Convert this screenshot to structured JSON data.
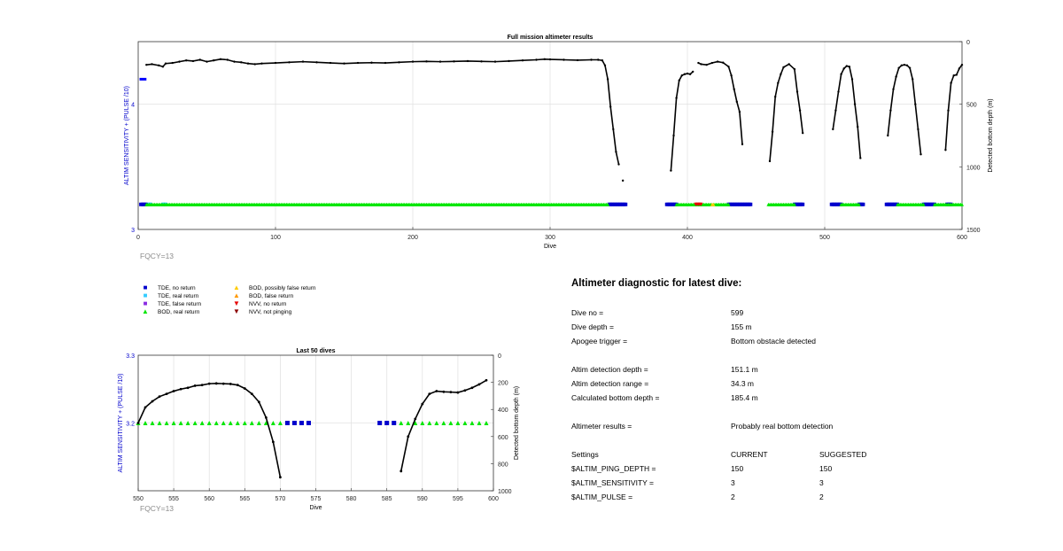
{
  "chart_data": [
    {
      "type": "scatter",
      "title": "Full mission altimeter results",
      "xlabel": "Dive",
      "ylabel_left": "ALTIM SENSITIVITY + (PULSE /10)",
      "ylabel_right": "Detected bottom depth (m)",
      "xlim": [
        0,
        600
      ],
      "xticks": [
        0,
        100,
        200,
        300,
        400,
        500,
        600
      ],
      "ylim_left": [
        3,
        4.5
      ],
      "yticks_left": [
        3,
        4
      ],
      "ylim_right": [
        1500,
        0
      ],
      "yticks_right": [
        0,
        500,
        1000,
        1500
      ],
      "grid": true,
      "annotation": "FQCY=13",
      "settings_segments": [
        {
          "x_start": 1,
          "x_end": 6,
          "y": 4.2,
          "color": "#0000ff"
        }
      ],
      "depth_series": {
        "name": "Detected bottom depth",
        "segments": [
          [
            [
              6,
              185
            ],
            [
              10,
              180
            ],
            [
              15,
              190
            ],
            [
              18,
              200
            ],
            [
              20,
              175
            ],
            [
              25,
              170
            ],
            [
              30,
              160
            ],
            [
              35,
              150
            ],
            [
              40,
              155
            ],
            [
              45,
              145
            ],
            [
              50,
              160
            ],
            [
              55,
              150
            ],
            [
              60,
              140
            ],
            [
              65,
              145
            ],
            [
              70,
              160
            ],
            [
              75,
              165
            ],
            [
              80,
              175
            ],
            [
              85,
              180
            ],
            [
              90,
              175
            ],
            [
              100,
              170
            ],
            [
              110,
              165
            ],
            [
              120,
              160
            ],
            [
              130,
              165
            ],
            [
              140,
              170
            ],
            [
              150,
              175
            ],
            [
              160,
              170
            ],
            [
              170,
              168
            ],
            [
              180,
              170
            ],
            [
              190,
              165
            ],
            [
              200,
              160
            ],
            [
              210,
              158
            ],
            [
              220,
              160
            ],
            [
              230,
              158
            ],
            [
              240,
              155
            ],
            [
              250,
              158
            ],
            [
              260,
              160
            ],
            [
              270,
              155
            ],
            [
              280,
              150
            ],
            [
              290,
              145
            ],
            [
              296,
              140
            ],
            [
              300,
              142
            ],
            [
              310,
              145
            ],
            [
              320,
              148
            ],
            [
              330,
              145
            ],
            [
              335,
              145
            ],
            [
              338,
              150
            ],
            [
              340,
              190
            ],
            [
              342,
              300
            ],
            [
              344,
              520
            ],
            [
              346,
              700
            ],
            [
              348,
              880
            ],
            [
              350,
              980
            ]
          ],
          [
            [
              353,
              1110
            ]
          ],
          [
            [
              388,
              1030
            ],
            [
              390,
              750
            ],
            [
              392,
              450
            ],
            [
              394,
              310
            ],
            [
              396,
              270
            ],
            [
              398,
              260
            ],
            [
              400,
              255
            ],
            [
              402,
              260
            ],
            [
              404,
              240
            ]
          ],
          [
            [
              408,
              170
            ],
            [
              410,
              180
            ],
            [
              414,
              185
            ],
            [
              418,
              170
            ],
            [
              422,
              160
            ],
            [
              426,
              168
            ],
            [
              430,
              200
            ],
            [
              432,
              270
            ],
            [
              434,
              380
            ],
            [
              436,
              480
            ],
            [
              438,
              560
            ],
            [
              440,
              820
            ]
          ],
          [
            [
              460,
              955
            ],
            [
              462,
              720
            ],
            [
              464,
              440
            ],
            [
              466,
              330
            ],
            [
              468,
              260
            ],
            [
              470,
              205
            ],
            [
              474,
              180
            ],
            [
              478,
              220
            ],
            [
              480,
              400
            ],
            [
              482,
              550
            ],
            [
              484,
              730
            ]
          ],
          [
            [
              506,
              700
            ],
            [
              508,
              550
            ],
            [
              510,
              400
            ],
            [
              512,
              260
            ],
            [
              514,
              215
            ],
            [
              516,
              195
            ],
            [
              518,
              200
            ],
            [
              520,
              300
            ],
            [
              522,
              500
            ],
            [
              524,
              680
            ],
            [
              526,
              930
            ]
          ],
          [
            [
              546,
              750
            ],
            [
              548,
              550
            ],
            [
              550,
              380
            ],
            [
              552,
              280
            ],
            [
              554,
              210
            ],
            [
              556,
              190
            ],
            [
              558,
              185
            ],
            [
              560,
              190
            ],
            [
              562,
              210
            ],
            [
              564,
              300
            ],
            [
              566,
              500
            ],
            [
              568,
              700
            ],
            [
              570,
              900
            ]
          ],
          [
            [
              588,
              865
            ],
            [
              590,
              550
            ],
            [
              592,
              330
            ],
            [
              594,
              270
            ],
            [
              596,
              265
            ],
            [
              598,
              215
            ],
            [
              600,
              185
            ]
          ]
        ]
      },
      "status_series": [
        {
          "name": "TDE, no return",
          "color": "#0000cc",
          "marker": "square",
          "ranges": [
            [
              2,
              6
            ],
            [
              343,
              355
            ],
            [
              385,
              392
            ],
            [
              430,
              446
            ],
            [
              478,
              484
            ],
            [
              505,
              512
            ],
            [
              525,
              528
            ],
            [
              545,
              553
            ],
            [
              572,
              580
            ],
            [
              589,
              592
            ]
          ]
        },
        {
          "name": "TDE, real return",
          "color": "#33ccff",
          "marker": "square",
          "ranges": [
            [
              8,
              9
            ],
            [
              18,
              20
            ]
          ]
        },
        {
          "name": "BOD, real return",
          "color": "#00e600",
          "marker": "triangle",
          "ranges": [
            [
              6,
              342
            ],
            [
              392,
              430
            ],
            [
              459,
              478
            ],
            [
              512,
              525
            ],
            [
              553,
              572
            ],
            [
              580,
              600
            ]
          ]
        },
        {
          "name": "NVV, no return",
          "color": "#e60000",
          "marker": "triangle-down",
          "ranges": [
            [
              406,
              410
            ]
          ]
        },
        {
          "name": "BOD, possibly false return",
          "color": "#ffcc00",
          "marker": "triangle",
          "ranges": [
            [
              418,
              419
            ]
          ]
        }
      ]
    },
    {
      "type": "scatter",
      "title": "Last 50 dives",
      "xlabel": "Dive",
      "ylabel_left": "ALTIM SENSITIVITY + (PULSE /10)",
      "ylabel_right": "Detected bottom depth (m)",
      "xlim": [
        550,
        600
      ],
      "xticks": [
        550,
        555,
        560,
        565,
        570,
        575,
        580,
        585,
        590,
        595,
        600
      ],
      "ylim_left": [
        3.1,
        3.3
      ],
      "yticks_left": [
        3.2,
        3.3
      ],
      "ylim_right": [
        1000,
        0
      ],
      "yticks_right": [
        0,
        200,
        400,
        600,
        800,
        1000
      ],
      "grid": true,
      "annotation": "FQCY=13",
      "depth_series": {
        "name": "Detected bottom depth",
        "segments": [
          [
            [
              550,
              500
            ],
            [
              551,
              385
            ],
            [
              552,
              340
            ],
            [
              553,
              305
            ],
            [
              554,
              285
            ],
            [
              555,
              265
            ],
            [
              556,
              250
            ],
            [
              557,
              240
            ],
            [
              558,
              225
            ],
            [
              559,
              220
            ],
            [
              560,
              210
            ],
            [
              561,
              208
            ],
            [
              562,
              210
            ],
            [
              563,
              212
            ],
            [
              564,
              220
            ],
            [
              565,
              245
            ],
            [
              566,
              285
            ],
            [
              567,
              345
            ],
            [
              568,
              460
            ],
            [
              569,
              640
            ],
            [
              570,
              900
            ]
          ],
          [
            [
              587,
              855
            ],
            [
              588,
              600
            ],
            [
              589,
              470
            ],
            [
              590,
              360
            ],
            [
              591,
              285
            ],
            [
              592,
              265
            ],
            [
              593,
              270
            ],
            [
              594,
              272
            ],
            [
              595,
              275
            ],
            [
              596,
              260
            ],
            [
              597,
              240
            ],
            [
              598,
              215
            ],
            [
              599,
              185
            ]
          ]
        ]
      },
      "status_series": [
        {
          "name": "BOD, real return",
          "color": "#00e600",
          "marker": "triangle",
          "x": [
            550,
            551,
            552,
            553,
            554,
            555,
            556,
            557,
            558,
            559,
            560,
            561,
            562,
            563,
            564,
            565,
            566,
            567,
            568,
            569,
            570,
            587,
            588,
            589,
            590,
            591,
            592,
            593,
            594,
            595,
            596,
            597,
            598,
            599
          ]
        },
        {
          "name": "TDE, no return",
          "color": "#0000cc",
          "marker": "square",
          "x": [
            571,
            572,
            573,
            574,
            584,
            585,
            586
          ]
        }
      ]
    }
  ],
  "legend": {
    "items": [
      {
        "label": "TDE, no return",
        "symbol": "■",
        "color": "#0000cc"
      },
      {
        "label": "TDE, real return",
        "symbol": "■",
        "color": "#33ccff"
      },
      {
        "label": "TDE, false return",
        "symbol": "■",
        "color": "#8a2be2"
      },
      {
        "label": "BOD, real return",
        "symbol": "▲",
        "color": "#00e600"
      },
      {
        "label": "BOD, possibly false return",
        "symbol": "▲",
        "color": "#ffcc00"
      },
      {
        "label": "BOD, false return",
        "symbol": "▲",
        "color": "#ff9900"
      },
      {
        "label": "NVV, no return",
        "symbol": "▼",
        "color": "#e60000"
      },
      {
        "label": "NVV, not pinging",
        "symbol": "▼",
        "color": "#8b0000"
      }
    ]
  },
  "diagnostic": {
    "title": "Altimeter diagnostic for latest dive:",
    "rows": [
      {
        "label": "Dive no =",
        "value": "599"
      },
      {
        "label": "Dive depth =",
        "value": "155 m"
      },
      {
        "label": "Apogee trigger =",
        "value": "Bottom obstacle detected"
      },
      {
        "label": "Altim detection depth =",
        "value": "151.1 m"
      },
      {
        "label": "Altim detection range =",
        "value": "34.3 m"
      },
      {
        "label": "Calculated bottom depth =",
        "value": "185.4 m"
      },
      {
        "label": "Altimeter results =",
        "value": "Probably real bottom detection"
      }
    ],
    "settings_header": {
      "label": "Settings",
      "current": "CURRENT",
      "suggested": "SUGGESTED"
    },
    "settings": [
      {
        "name": "$ALTIM_PING_DEPTH =",
        "current": "150",
        "suggested": "150"
      },
      {
        "name": "$ALTIM_SENSITIVITY =",
        "current": "3",
        "suggested": "3"
      },
      {
        "name": "$ALTIM_PULSE =",
        "current": "2",
        "suggested": "2"
      }
    ]
  }
}
